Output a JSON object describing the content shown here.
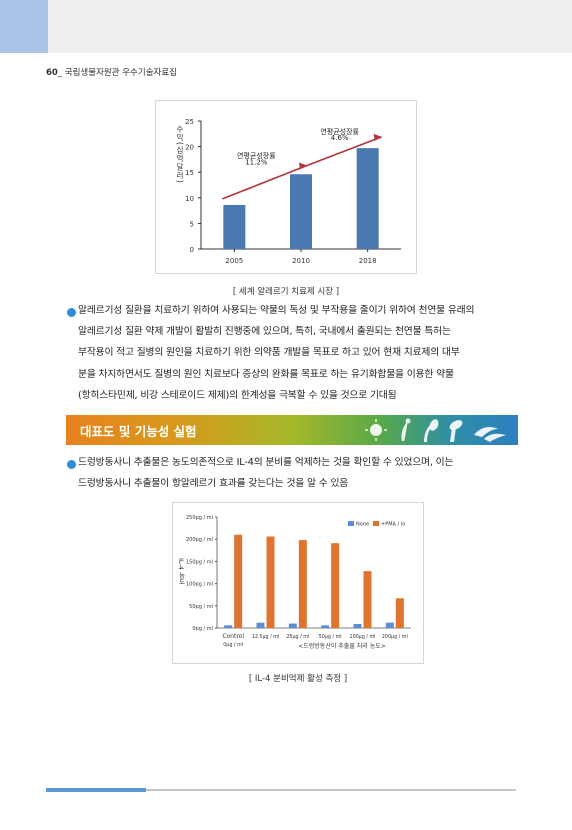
{
  "header": {
    "page_number": "60",
    "doc_title": "국립생물자원관 우수기술자료집"
  },
  "figure1": {
    "ylabel": "수익(십억달러)",
    "annotations": [
      {
        "label": "연평균성장률",
        "value": "11.2%"
      },
      {
        "label": "연평균성장률",
        "value": "4.6%"
      }
    ],
    "caption": "[ 세계 알레르기 치료제 시장 ]"
  },
  "paragraph1": [
    "알레르기성 질환을 치료하기 위하여 사용되는 약물의 독성 및 부작용을 줄이기 위하여 천연물 유래의",
    "알레르기성 질환 약제 개발이 활발히 진행중에 있으며, 특히, 국내에서 출원되는 천연물 특허는",
    "부작용이 적고 질병의 원인을 치료하기 위한 의약품 개발을 목표로 하고 있어 현재 치료제의 대부",
    "분을 차지하면서도 질병의 원인 치료보다 증상의 완화를 목표로 하는 유기화합물을 이용한 약물",
    "(항히스타민제, 비강 스테로이드 제제)의 한계성을 극복할 수 있을 것으로 기대됨"
  ],
  "section": {
    "title": "대표도 및 기능성 실험"
  },
  "paragraph2": [
    "드렁방동사니 추출물은 농도의존적으로 IL-4의 분비를 억제하는 것을 확인할 수 있었으며, 이는",
    "드렁방동사니 추출물이 항알레르기 효과를 갖는다는 것을 알 수 있음"
  ],
  "figure2": {
    "ylabel": "IL-4 농도",
    "xlabel": "<드렁방동산이 추출물 처리 농도>",
    "control_sublabel": "0μg / ml",
    "caption": "[ IL-4 분비억제 활성 측정 ]"
  },
  "chart_data": [
    {
      "type": "bar",
      "categories": [
        "2005",
        "2010",
        "2018"
      ],
      "values": [
        8.6,
        14.6,
        19.7
      ],
      "ylabel": "수익(십억달러)",
      "ylim": [
        0,
        25
      ],
      "yticks": [
        0,
        5,
        10,
        15,
        20,
        25
      ],
      "grid": false,
      "color": "#4a78b0",
      "trend_color": "#b0353d"
    },
    {
      "type": "bar",
      "categories": [
        "Control",
        "12.5μg / ml",
        "25μg / ml",
        "50μg / ml",
        "100μg / ml",
        "200μg / ml"
      ],
      "series": [
        {
          "name": "None",
          "values": [
            6,
            12,
            10,
            6,
            9,
            12
          ],
          "color": "#5b8ed6"
        },
        {
          "name": "+PMA / Io",
          "values": [
            210,
            206,
            198,
            191,
            128,
            67
          ],
          "color": "#e0742e"
        }
      ],
      "ylabel": "IL-4 농도",
      "ylim": [
        0,
        250
      ],
      "ytick_labels": [
        "0pg / ml",
        "50pg / ml",
        "100pg / ml",
        "150pg / ml",
        "200pg / ml",
        "250pg / ml"
      ],
      "legend": "top-right",
      "grid": false
    }
  ]
}
